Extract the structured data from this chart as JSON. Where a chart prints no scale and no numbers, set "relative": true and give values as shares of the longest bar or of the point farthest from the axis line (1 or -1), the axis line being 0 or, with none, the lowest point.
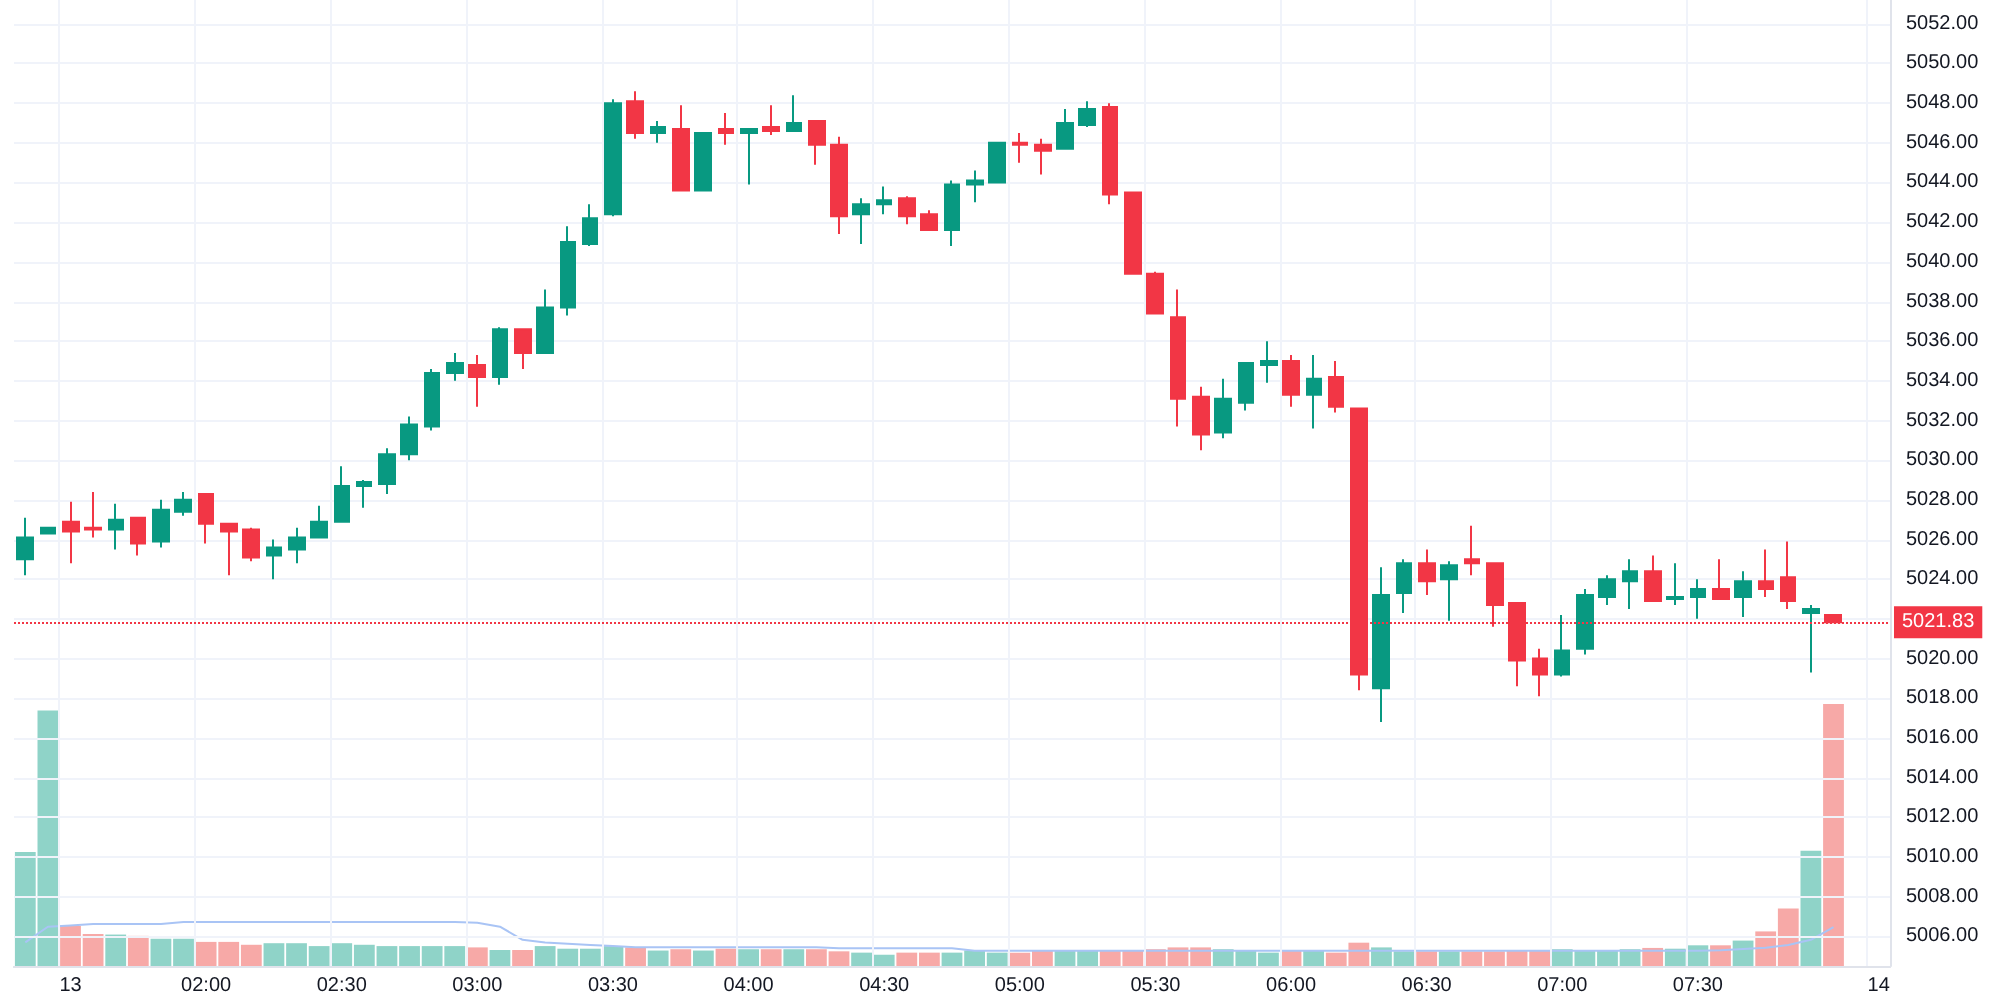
{
  "chart_data": [
    {
      "type": "candlestick",
      "categories": [
        null,
        null,
        "13",
        null,
        null,
        null,
        null,
        null,
        "02:00",
        null,
        null,
        null,
        null,
        null,
        "02:30",
        null,
        null,
        null,
        null,
        null,
        "03:00",
        null,
        null,
        null,
        null,
        null,
        "03:30",
        null,
        null,
        null,
        null,
        null,
        "04:00",
        null,
        null,
        null,
        null,
        null,
        "04:30",
        null,
        null,
        null,
        null,
        null,
        "05:00",
        null,
        null,
        null,
        null,
        null,
        "05:30",
        null,
        null,
        null,
        null,
        null,
        "06:00",
        null,
        null,
        null,
        null,
        null,
        "06:30",
        null,
        null,
        null,
        null,
        null,
        "07:00",
        null,
        null,
        null,
        null,
        null,
        "07:30",
        null,
        null,
        null,
        null,
        null,
        null,
        null,
        "14"
      ],
      "ohlc": [
        [
          5025.0,
          5027.1,
          5024.2,
          5026.1
        ],
        [
          5026.3,
          5026.6,
          5026.3,
          5026.6
        ],
        [
          5026.9,
          5027.9,
          5024.8,
          5026.4
        ],
        [
          5026.6,
          5028.4,
          5026.1,
          5026.5
        ],
        [
          5026.5,
          5027.8,
          5025.5,
          5027.0
        ],
        [
          5027.1,
          5027.1,
          5025.2,
          5025.8
        ],
        [
          5025.9,
          5028.0,
          5025.6,
          5027.5
        ],
        [
          5027.4,
          5028.4,
          5027.2,
          5028.0
        ],
        [
          5028.3,
          5028.3,
          5025.8,
          5026.8
        ],
        [
          5026.8,
          5026.8,
          5024.2,
          5026.4
        ],
        [
          5026.5,
          5026.6,
          5024.9,
          5025.1
        ],
        [
          5025.2,
          5026.0,
          5024.0,
          5025.6
        ],
        [
          5025.5,
          5026.6,
          5024.8,
          5026.1
        ],
        [
          5026.1,
          5027.7,
          5026.1,
          5026.9
        ],
        [
          5026.9,
          5029.7,
          5026.9,
          5028.7
        ],
        [
          5028.7,
          5029.0,
          5027.6,
          5028.9
        ],
        [
          5028.8,
          5030.6,
          5028.3,
          5030.3
        ],
        [
          5030.3,
          5032.2,
          5030.0,
          5031.8
        ],
        [
          5031.7,
          5034.6,
          5031.5,
          5034.4
        ],
        [
          5034.4,
          5035.4,
          5034.0,
          5034.9
        ],
        [
          5034.8,
          5035.3,
          5032.7,
          5034.2
        ],
        [
          5034.2,
          5036.7,
          5033.8,
          5036.6
        ],
        [
          5036.6,
          5036.6,
          5034.6,
          5035.4
        ],
        [
          5035.4,
          5038.6,
          5035.4,
          5037.7
        ],
        [
          5037.7,
          5041.8,
          5037.3,
          5041.0
        ],
        [
          5040.9,
          5042.9,
          5040.8,
          5042.2
        ],
        [
          5042.4,
          5048.2,
          5042.3,
          5048.0
        ],
        [
          5048.1,
          5048.6,
          5046.2,
          5046.5
        ],
        [
          5046.5,
          5047.1,
          5046.0,
          5046.8
        ],
        [
          5046.7,
          5047.9,
          5043.6,
          5043.6
        ],
        [
          5043.6,
          5046.5,
          5043.6,
          5046.5
        ],
        [
          5046.7,
          5047.5,
          5045.9,
          5046.5
        ],
        [
          5046.5,
          5046.7,
          5043.9,
          5046.7
        ],
        [
          5046.8,
          5047.9,
          5046.4,
          5046.6
        ],
        [
          5046.6,
          5048.4,
          5046.6,
          5047.0
        ],
        [
          5047.1,
          5047.1,
          5044.9,
          5045.9
        ],
        [
          5045.9,
          5046.3,
          5041.4,
          5042.3
        ],
        [
          5042.4,
          5043.2,
          5040.9,
          5042.9
        ],
        [
          5042.9,
          5043.8,
          5042.4,
          5043.1
        ],
        [
          5043.2,
          5043.3,
          5041.9,
          5042.3
        ],
        [
          5042.4,
          5042.6,
          5041.6,
          5041.6
        ],
        [
          5041.6,
          5044.1,
          5040.8,
          5043.9
        ],
        [
          5043.9,
          5044.6,
          5043.0,
          5044.1
        ],
        [
          5044.0,
          5046.0,
          5044.0,
          5046.0
        ],
        [
          5046.0,
          5046.5,
          5045.0,
          5045.9
        ],
        [
          5045.9,
          5046.2,
          5044.4,
          5045.6
        ],
        [
          5045.7,
          5047.7,
          5045.7,
          5047.0
        ],
        [
          5046.9,
          5048.1,
          5046.8,
          5047.7
        ],
        [
          5047.8,
          5048.0,
          5042.9,
          5043.4
        ],
        [
          5043.5,
          5043.5,
          5039.4,
          5039.4
        ],
        [
          5039.4,
          5039.5,
          5037.4,
          5037.4
        ],
        [
          5037.2,
          5038.6,
          5031.7,
          5033.1
        ],
        [
          5033.2,
          5033.7,
          5030.5,
          5031.3
        ],
        [
          5031.4,
          5034.1,
          5031.1,
          5033.1
        ],
        [
          5032.9,
          5034.9,
          5032.5,
          5034.9
        ],
        [
          5034.8,
          5036.0,
          5033.9,
          5035.0
        ],
        [
          5035.0,
          5035.3,
          5032.7,
          5033.3
        ],
        [
          5033.3,
          5035.3,
          5031.6,
          5034.1
        ],
        [
          5034.2,
          5035.0,
          5032.4,
          5032.7
        ],
        [
          5032.6,
          5032.6,
          5018.4,
          5019.2
        ],
        [
          5018.5,
          5024.6,
          5016.8,
          5023.2
        ],
        [
          5023.3,
          5025.0,
          5022.3,
          5024.8
        ],
        [
          5024.8,
          5025.5,
          5023.2,
          5023.9
        ],
        [
          5024.0,
          5024.9,
          5021.9,
          5024.7
        ],
        [
          5025.0,
          5026.7,
          5024.2,
          5024.8
        ],
        [
          5024.8,
          5024.8,
          5021.6,
          5022.7
        ],
        [
          5022.8,
          5022.8,
          5018.6,
          5019.9
        ],
        [
          5020.0,
          5020.5,
          5018.1,
          5019.2
        ],
        [
          5019.2,
          5022.2,
          5019.1,
          5020.4
        ],
        [
          5020.5,
          5023.5,
          5020.2,
          5023.2
        ],
        [
          5023.1,
          5024.2,
          5022.7,
          5024.0
        ],
        [
          5023.9,
          5025.0,
          5022.5,
          5024.4
        ],
        [
          5024.4,
          5025.2,
          5022.9,
          5022.9
        ],
        [
          5023.0,
          5024.8,
          5022.7,
          5023.1
        ],
        [
          5023.1,
          5024.0,
          5022.0,
          5023.5
        ],
        [
          5023.5,
          5025.0,
          5023.0,
          5023.0
        ],
        [
          5023.1,
          5024.4,
          5022.1,
          5023.9
        ],
        [
          5023.9,
          5025.5,
          5023.1,
          5023.5
        ],
        [
          5024.1,
          5025.9,
          5022.5,
          5022.9
        ],
        [
          5022.3,
          5022.7,
          5019.3,
          5022.5
        ],
        [
          5022.2,
          5022.2,
          5021.8,
          5021.83
        ],
        null,
        null
      ],
      "colors": [
        "#089981",
        "#089981",
        "#f23645",
        "#f23645",
        "#089981",
        "#f23645",
        "#089981",
        "#089981",
        "#f23645",
        "#f23645",
        "#f23645",
        "#089981",
        "#089981",
        "#089981",
        "#089981",
        "#089981",
        "#089981",
        "#089981",
        "#089981",
        "#089981",
        "#f23645",
        "#089981",
        "#f23645",
        "#089981",
        "#089981",
        "#089981",
        "#089981",
        "#f23645",
        "#089981",
        "#f23645",
        "#089981",
        "#f23645",
        "#089981",
        "#f23645",
        "#089981",
        "#f23645",
        "#f23645",
        "#089981",
        "#089981",
        "#f23645",
        "#f23645",
        "#089981",
        "#089981",
        "#089981",
        "#f23645",
        "#f23645",
        "#089981",
        "#089981",
        "#f23645",
        "#f23645",
        "#f23645",
        "#f23645",
        "#f23645",
        "#089981",
        "#089981",
        "#089981",
        "#f23645",
        "#089981",
        "#f23645",
        "#f23645",
        "#089981",
        "#089981",
        "#f23645",
        "#089981",
        "#f23645",
        "#f23645",
        "#f23645",
        "#f23645",
        "#089981",
        "#089981",
        "#089981",
        "#089981",
        "#f23645",
        "#089981",
        "#089981",
        "#f23645",
        "#089981",
        "#f23645",
        "#f23645",
        "#089981",
        "#f23645",
        null,
        null
      ],
      "ylim": [
        5004.5,
        5053.2
      ],
      "yticks": [
        {
          "value": 5006,
          "label": "5006.00"
        },
        {
          "value": 5008,
          "label": "5008.00"
        },
        {
          "value": 5010,
          "label": "5010.00"
        },
        {
          "value": 5012,
          "label": "5012.00"
        },
        {
          "value": 5014,
          "label": "5014.00"
        },
        {
          "value": 5016,
          "label": "5016.00"
        },
        {
          "value": 5018,
          "label": "5018.00"
        },
        {
          "value": 5020,
          "label": "5020.00"
        },
        {
          "value": 5022,
          "label": null
        },
        {
          "value": 5024,
          "label": "5024.00"
        },
        {
          "value": 5026,
          "label": "5026.00"
        },
        {
          "value": 5028,
          "label": "5028.00"
        },
        {
          "value": 5030,
          "label": "5030.00"
        },
        {
          "value": 5032,
          "label": "5032.00"
        },
        {
          "value": 5034,
          "label": "5034.00"
        },
        {
          "value": 5036,
          "label": "5036.00"
        },
        {
          "value": 5038,
          "label": "5038.00"
        },
        {
          "value": 5040,
          "label": "5040.00"
        },
        {
          "value": 5042,
          "label": "5042.00"
        },
        {
          "value": 5044,
          "label": "5044.00"
        },
        {
          "value": 5046,
          "label": "5046.00"
        },
        {
          "value": 5048,
          "label": "5048.00"
        },
        {
          "value": 5050,
          "label": "5050.00"
        },
        {
          "value": 5052,
          "label": "5052.00"
        }
      ],
      "grid": true,
      "ref_lines": [
        {
          "axis": "y",
          "value": 5021.83,
          "label": "5021.83",
          "color": "#f23645",
          "line_style": "dotted"
        }
      ]
    },
    {
      "type": "bar",
      "relative": true,
      "categories": [
        null,
        null,
        null,
        null,
        null,
        null,
        null,
        null,
        null,
        null,
        null,
        null,
        null,
        null,
        null,
        null,
        null,
        null,
        null,
        null,
        null,
        null,
        null,
        null,
        null,
        null,
        null,
        null,
        null,
        null,
        null,
        null,
        null,
        null,
        null,
        null,
        null,
        null,
        null,
        null,
        null,
        null,
        null,
        null,
        null,
        null,
        null,
        null,
        null,
        null,
        null,
        null,
        null,
        null,
        null,
        null,
        null,
        null,
        null,
        null,
        null,
        null,
        null,
        null,
        null,
        null,
        null,
        null,
        null,
        null,
        null,
        null,
        null,
        null,
        null,
        null,
        null,
        null,
        null,
        null,
        null,
        null,
        null
      ],
      "series": [
        {
          "type": "bar",
          "values": [
            0.435,
            0.975,
            0.153,
            0.122,
            0.12,
            0.115,
            0.104,
            0.104,
            0.092,
            0.092,
            0.081,
            0.087,
            0.087,
            0.076,
            0.087,
            0.081,
            0.076,
            0.076,
            0.076,
            0.076,
            0.071,
            0.061,
            0.061,
            0.076,
            0.066,
            0.066,
            0.076,
            0.071,
            0.059,
            0.064,
            0.059,
            0.066,
            0.064,
            0.064,
            0.064,
            0.064,
            0.056,
            0.051,
            0.043,
            0.051,
            0.051,
            0.051,
            0.059,
            0.051,
            0.051,
            0.059,
            0.059,
            0.059,
            0.059,
            0.059,
            0.064,
            0.071,
            0.071,
            0.064,
            0.059,
            0.051,
            0.059,
            0.059,
            0.051,
            0.089,
            0.071,
            0.056,
            0.056,
            0.056,
            0.056,
            0.056,
            0.059,
            0.059,
            0.064,
            0.059,
            0.059,
            0.064,
            0.069,
            0.066,
            0.079,
            0.079,
            0.097,
            0.132,
            0.219,
            0.44,
            1,
            null,
            null
          ],
          "colors": [
            "#8fd3c8",
            "#8fd3c8",
            "#f7a9a7",
            "#f7a9a7",
            "#8fd3c8",
            "#f7a9a7",
            "#8fd3c8",
            "#8fd3c8",
            "#f7a9a7",
            "#f7a9a7",
            "#f7a9a7",
            "#8fd3c8",
            "#8fd3c8",
            "#8fd3c8",
            "#8fd3c8",
            "#8fd3c8",
            "#8fd3c8",
            "#8fd3c8",
            "#8fd3c8",
            "#8fd3c8",
            "#f7a9a7",
            "#8fd3c8",
            "#f7a9a7",
            "#8fd3c8",
            "#8fd3c8",
            "#8fd3c8",
            "#8fd3c8",
            "#f7a9a7",
            "#8fd3c8",
            "#f7a9a7",
            "#8fd3c8",
            "#f7a9a7",
            "#8fd3c8",
            "#f7a9a7",
            "#8fd3c8",
            "#f7a9a7",
            "#f7a9a7",
            "#8fd3c8",
            "#8fd3c8",
            "#f7a9a7",
            "#f7a9a7",
            "#8fd3c8",
            "#8fd3c8",
            "#8fd3c8",
            "#f7a9a7",
            "#f7a9a7",
            "#8fd3c8",
            "#8fd3c8",
            "#f7a9a7",
            "#f7a9a7",
            "#f7a9a7",
            "#f7a9a7",
            "#f7a9a7",
            "#8fd3c8",
            "#8fd3c8",
            "#8fd3c8",
            "#f7a9a7",
            "#8fd3c8",
            "#f7a9a7",
            "#f7a9a7",
            "#8fd3c8",
            "#8fd3c8",
            "#f7a9a7",
            "#8fd3c8",
            "#f7a9a7",
            "#f7a9a7",
            "#f7a9a7",
            "#f7a9a7",
            "#8fd3c8",
            "#8fd3c8",
            "#8fd3c8",
            "#8fd3c8",
            "#f7a9a7",
            "#8fd3c8",
            "#8fd3c8",
            "#f7a9a7",
            "#8fd3c8",
            "#f7a9a7",
            "#f7a9a7",
            "#8fd3c8",
            "#f7a9a7",
            null,
            null
          ]
        },
        {
          "type": "line",
          "color": "#a9c4f5",
          "values": [
            0.09,
            0.15,
            0.155,
            0.16,
            0.16,
            0.16,
            0.16,
            0.168,
            0.168,
            0.168,
            0.168,
            0.168,
            0.168,
            0.168,
            0.168,
            0.168,
            0.168,
            0.168,
            0.168,
            0.168,
            0.165,
            0.15,
            0.1,
            0.09,
            0.085,
            0.08,
            0.076,
            0.072,
            0.072,
            0.072,
            0.072,
            0.072,
            0.072,
            0.072,
            0.072,
            0.072,
            0.068,
            0.068,
            0.068,
            0.068,
            0.068,
            0.068,
            0.058,
            0.058,
            0.058,
            0.058,
            0.058,
            0.058,
            0.058,
            0.058,
            0.058,
            0.058,
            0.058,
            0.058,
            0.058,
            0.058,
            0.058,
            0.058,
            0.058,
            0.058,
            0.058,
            0.058,
            0.058,
            0.058,
            0.058,
            0.058,
            0.058,
            0.058,
            0.058,
            0.058,
            0.058,
            0.058,
            0.058,
            0.058,
            0.058,
            0.06,
            0.065,
            0.07,
            0.08,
            0.1,
            0.148,
            null,
            null
          ]
        }
      ]
    }
  ]
}
